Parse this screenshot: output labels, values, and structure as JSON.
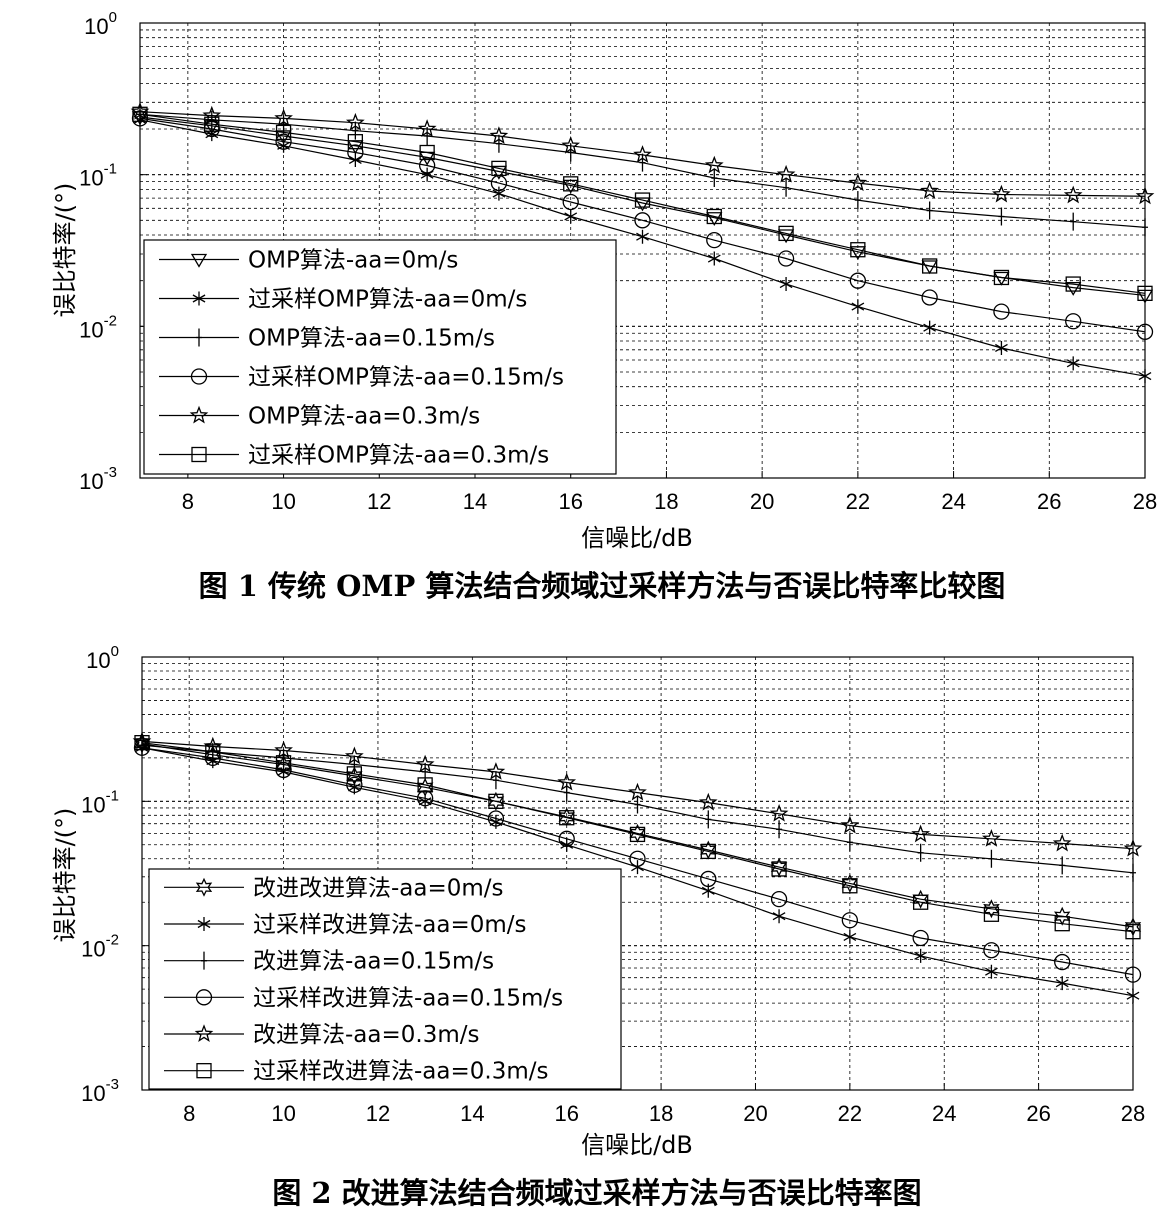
{
  "chart_data": [
    {
      "type": "line",
      "yscale": "log",
      "xlabel": "信噪比/dB",
      "ylabel": "误比特率/(°)",
      "xlim": [
        7,
        28
      ],
      "ylim": [
        0.001,
        1
      ],
      "xticks": [
        "8",
        "10",
        "12",
        "14",
        "16",
        "18",
        "20",
        "22",
        "24",
        "26",
        "28"
      ],
      "yticks": [
        {
          "base": "10",
          "exp": "0"
        },
        {
          "base": "10",
          "exp": "-1"
        },
        {
          "base": "10",
          "exp": "-2"
        },
        {
          "base": "10",
          "exp": "-3"
        }
      ],
      "grid": true,
      "legend_position": "lower-left",
      "caption": "图 1  传统 OMP 算法结合频域过采样方法与否误比特率比较图",
      "x": [
        7,
        8.5,
        10,
        11.5,
        13,
        14.5,
        16,
        17.5,
        19,
        20.5,
        22,
        23.5,
        25,
        26.5,
        28
      ],
      "series": [
        {
          "name": "OMP算法-aa=0m/s",
          "marker": "triangle-down",
          "values": [
            0.24,
            0.21,
            0.18,
            0.155,
            0.13,
            0.105,
            0.085,
            0.065,
            0.052,
            0.04,
            0.031,
            0.025,
            0.021,
            0.018,
            0.016
          ]
        },
        {
          "name": "过采样OMP算法-aa=0m/s",
          "marker": "asterisk",
          "values": [
            0.23,
            0.185,
            0.155,
            0.125,
            0.1,
            0.075,
            0.053,
            0.039,
            0.028,
            0.019,
            0.0135,
            0.0098,
            0.0072,
            0.0057,
            0.0047
          ]
        },
        {
          "name": "OMP算法-aa=0.15m/s",
          "marker": "plus",
          "values": [
            0.25,
            0.23,
            0.215,
            0.195,
            0.18,
            0.16,
            0.14,
            0.12,
            0.095,
            0.082,
            0.068,
            0.058,
            0.053,
            0.049,
            0.045
          ]
        },
        {
          "name": "过采样OMP算法-aa=0.15m/s",
          "marker": "circle",
          "values": [
            0.235,
            0.2,
            0.165,
            0.14,
            0.115,
            0.088,
            0.066,
            0.05,
            0.037,
            0.028,
            0.02,
            0.0155,
            0.0125,
            0.0108,
            0.0092
          ]
        },
        {
          "name": "OMP算法-aa=0.3m/s",
          "marker": "star",
          "values": [
            0.26,
            0.245,
            0.235,
            0.22,
            0.2,
            0.18,
            0.155,
            0.135,
            0.115,
            0.1,
            0.088,
            0.078,
            0.074,
            0.073,
            0.072
          ]
        },
        {
          "name": "过采样OMP算法-aa=0.3m/s",
          "marker": "square",
          "values": [
            0.25,
            0.215,
            0.19,
            0.165,
            0.14,
            0.11,
            0.087,
            0.068,
            0.053,
            0.041,
            0.032,
            0.025,
            0.021,
            0.019,
            0.0165
          ]
        }
      ]
    },
    {
      "type": "line",
      "yscale": "log",
      "xlabel": "信噪比/dB",
      "ylabel": "误比特率/(°)",
      "xlim": [
        7,
        28
      ],
      "ylim": [
        0.001,
        1
      ],
      "xticks": [
        "8",
        "10",
        "12",
        "14",
        "16",
        "18",
        "20",
        "22",
        "24",
        "26",
        "28"
      ],
      "yticks": [
        {
          "base": "10",
          "exp": "0"
        },
        {
          "base": "10",
          "exp": "-1"
        },
        {
          "base": "10",
          "exp": "-2"
        },
        {
          "base": "10",
          "exp": "-3"
        }
      ],
      "grid": true,
      "legend_position": "lower-left",
      "caption": "图 2  改进算法结合频域过采样方法与否误比特率图",
      "x": [
        7,
        8.5,
        10,
        11.5,
        13,
        14.5,
        16,
        17.5,
        19,
        20.5,
        22,
        23.5,
        25,
        26.5,
        28
      ],
      "series": [
        {
          "name": "改进改进算法-aa=0m/s",
          "marker": "star6",
          "values": [
            0.25,
            0.21,
            0.18,
            0.15,
            0.125,
            0.1,
            0.078,
            0.06,
            0.046,
            0.035,
            0.027,
            0.021,
            0.018,
            0.016,
            0.0135
          ]
        },
        {
          "name": "过采样改进算法-aa=0m/s",
          "marker": "asterisk",
          "values": [
            0.235,
            0.19,
            0.16,
            0.125,
            0.1,
            0.072,
            0.05,
            0.035,
            0.024,
            0.016,
            0.0115,
            0.0085,
            0.0066,
            0.0055,
            0.0045
          ]
        },
        {
          "name": "改进算法-aa=0.15m/s",
          "marker": "plus",
          "values": [
            0.245,
            0.22,
            0.2,
            0.18,
            0.16,
            0.14,
            0.115,
            0.095,
            0.075,
            0.064,
            0.052,
            0.044,
            0.04,
            0.036,
            0.032
          ]
        },
        {
          "name": "过采样改进算法-aa=0.15m/s",
          "marker": "circle",
          "values": [
            0.235,
            0.2,
            0.165,
            0.13,
            0.105,
            0.076,
            0.055,
            0.04,
            0.029,
            0.021,
            0.015,
            0.0113,
            0.0093,
            0.0077,
            0.0063
          ]
        },
        {
          "name": "改进算法-aa=0.3m/s",
          "marker": "star",
          "values": [
            0.26,
            0.24,
            0.225,
            0.205,
            0.18,
            0.16,
            0.135,
            0.115,
            0.098,
            0.082,
            0.068,
            0.059,
            0.055,
            0.051,
            0.047
          ]
        },
        {
          "name": "过采样改进算法-aa=0.3m/s",
          "marker": "square",
          "values": [
            0.255,
            0.22,
            0.185,
            0.155,
            0.13,
            0.1,
            0.077,
            0.059,
            0.045,
            0.034,
            0.026,
            0.02,
            0.0165,
            0.0142,
            0.0125
          ]
        }
      ]
    }
  ]
}
